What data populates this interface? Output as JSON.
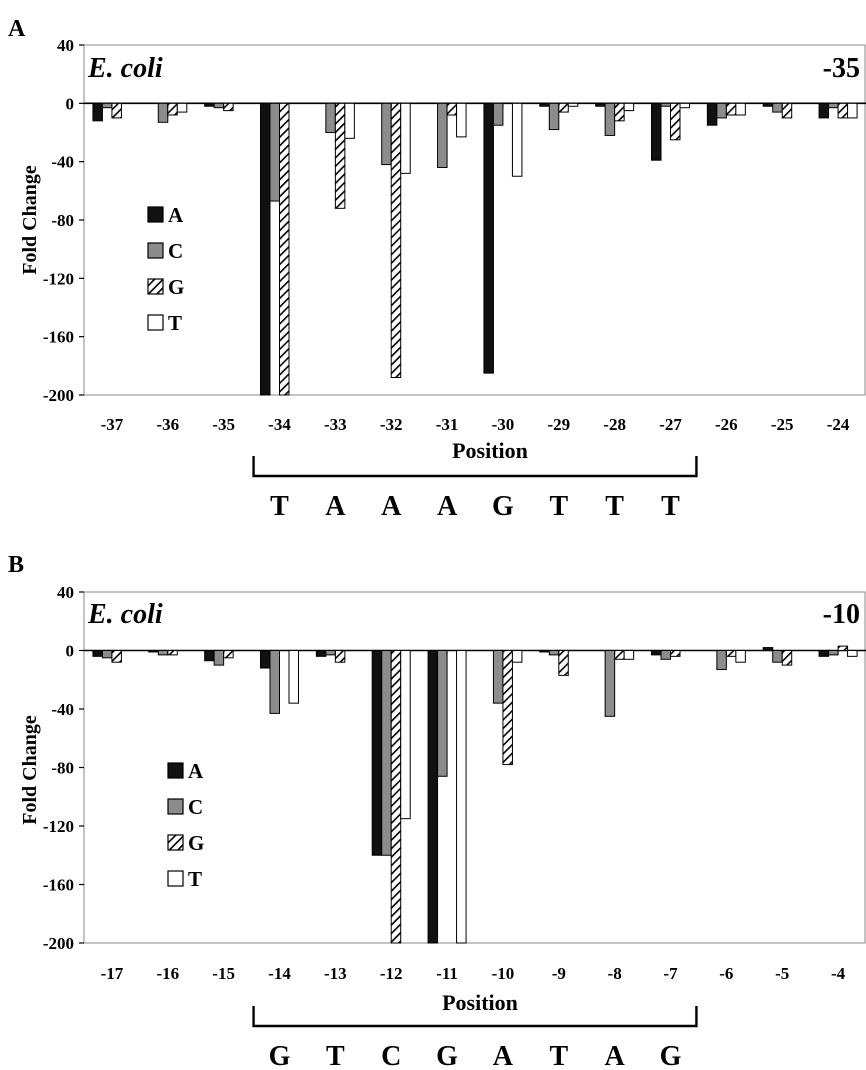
{
  "chart_data": [
    {
      "type": "bar",
      "panel_letter": "A",
      "organism": "E. coli",
      "region": "-35",
      "xlabel": "Position",
      "ylabel": "Fold Change",
      "ylim": [
        -200,
        40
      ],
      "yticks": [
        "40",
        "0",
        "-40",
        "-80",
        "-120",
        "-160",
        "-200"
      ],
      "categories": [
        "-37",
        "-36",
        "-35",
        "-34",
        "-33",
        "-32",
        "-31",
        "-30",
        "-29",
        "-28",
        "-27",
        "-26",
        "-25",
        "-24"
      ],
      "series": [
        {
          "name": "A",
          "color": "#111111",
          "pattern": "solid",
          "values": [
            -12,
            0,
            -2,
            -200,
            0,
            0,
            0,
            -185,
            -2,
            -2,
            -39,
            -15,
            -2,
            -10
          ]
        },
        {
          "name": "C",
          "color": "#8c8c8c",
          "pattern": "solid",
          "values": [
            -3,
            -13,
            -3,
            -67,
            -20,
            -42,
            -44,
            -15,
            -18,
            -22,
            -2,
            -10,
            -6,
            -3
          ]
        },
        {
          "name": "G",
          "color": "#ffffff",
          "pattern": "hatch",
          "values": [
            -10,
            -8,
            -5,
            -200,
            -72,
            -188,
            -8,
            0,
            -6,
            -12,
            -25,
            -8,
            -10,
            -10
          ]
        },
        {
          "name": "T",
          "color": "#ffffff",
          "pattern": "solid",
          "values": [
            0,
            -6,
            0,
            0,
            -24,
            -48,
            -23,
            -50,
            -2,
            -5,
            -3,
            -8,
            0,
            -10
          ]
        }
      ],
      "bracket_from": "-34",
      "bracket_to": "-27",
      "sequence": [
        "T",
        "A",
        "A",
        "A",
        "G",
        "T",
        "T",
        "T"
      ]
    },
    {
      "type": "bar",
      "panel_letter": "B",
      "organism": "E. coli",
      "region": "-10",
      "xlabel": "Position",
      "ylabel": "Fold Change",
      "ylim": [
        -200,
        40
      ],
      "yticks": [
        "40",
        "0",
        "-40",
        "-80",
        "-120",
        "-160",
        "-200"
      ],
      "categories": [
        "-17",
        "-16",
        "-15",
        "-14",
        "-13",
        "-12",
        "-11",
        "-10",
        "-9",
        "-8",
        "-7",
        "-6",
        "-5",
        "-4"
      ],
      "series": [
        {
          "name": "A",
          "color": "#111111",
          "pattern": "solid",
          "values": [
            -4,
            -1,
            -7,
            -12,
            -4,
            -140,
            -200,
            0,
            -1,
            0,
            -3,
            0,
            2,
            -4
          ]
        },
        {
          "name": "C",
          "color": "#8c8c8c",
          "pattern": "solid",
          "values": [
            -5,
            -3,
            -10,
            -43,
            -3,
            -140,
            -86,
            -36,
            -3,
            -45,
            -6,
            -13,
            -8,
            -3
          ]
        },
        {
          "name": "G",
          "color": "#ffffff",
          "pattern": "hatch",
          "values": [
            -8,
            -3,
            -5,
            0,
            -8,
            -200,
            0,
            -78,
            -17,
            -6,
            -4,
            -4,
            -10,
            3
          ]
        },
        {
          "name": "T",
          "color": "#ffffff",
          "pattern": "solid",
          "values": [
            0,
            0,
            0,
            -36,
            0,
            -115,
            -200,
            -8,
            0,
            -6,
            0,
            -8,
            0,
            -4
          ]
        }
      ],
      "bracket_from": "-14",
      "bracket_to": "-7",
      "sequence": [
        "G",
        "T",
        "C",
        "G",
        "A",
        "T",
        "A",
        "G"
      ]
    }
  ]
}
